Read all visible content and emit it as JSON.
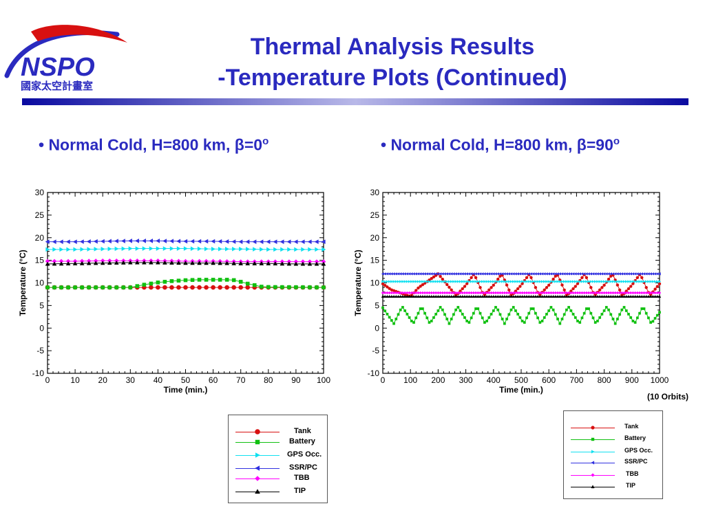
{
  "header": {
    "title_line1": "Thermal Analysis Results",
    "title_line2": "-Temperature Plots (Continued)",
    "logo_text": "NSPO",
    "logo_subtext": "國家太空計畫室"
  },
  "bullets": {
    "left": {
      "prefix": "• Normal Cold, H=800 km, ",
      "beta": "β",
      "suffix": "=0",
      "degree": "o"
    },
    "right": {
      "prefix": "• Normal Cold, H=800 km, ",
      "beta": "β",
      "suffix": "=90",
      "degree": "o"
    }
  },
  "note": "(10 Orbits)",
  "colors": {
    "title": "#2a2abf",
    "Tank": "#d81010",
    "Battery": "#10c010",
    "GPS Occ.": "#10e0f0",
    "SSR/PC": "#3030e0",
    "TBB": "#ff00ff",
    "TIP": "#000000"
  },
  "chart_data": [
    {
      "type": "line",
      "xlabel": "Time (min.)",
      "ylabel": "Temperature (°C)",
      "xlim": [
        0,
        100
      ],
      "ylim": [
        -10,
        30
      ],
      "xticks": [
        0,
        10,
        20,
        30,
        40,
        50,
        60,
        70,
        80,
        90,
        100
      ],
      "yticks": [
        -10,
        -5,
        0,
        5,
        10,
        15,
        20,
        25,
        30
      ],
      "legend_position": "below-right",
      "series": [
        {
          "name": "Tank",
          "marker": "circle",
          "x": [
            0,
            25,
            50,
            75,
            100
          ],
          "y": [
            9.0,
            9.0,
            9.0,
            9.0,
            9.0
          ]
        },
        {
          "name": "Battery",
          "marker": "square",
          "x": [
            0,
            30,
            35,
            40,
            45,
            50,
            55,
            60,
            65,
            68,
            72,
            78,
            100
          ],
          "y": [
            9.0,
            9.0,
            9.6,
            10.1,
            10.4,
            10.6,
            10.7,
            10.7,
            10.7,
            10.6,
            9.9,
            9.1,
            9.0
          ]
        },
        {
          "name": "GPS Occ.",
          "marker": "triangle-right",
          "x": [
            0,
            10,
            20,
            30,
            40,
            50,
            60,
            70,
            80,
            90,
            100
          ],
          "y": [
            17.4,
            17.4,
            17.5,
            17.6,
            17.6,
            17.6,
            17.5,
            17.5,
            17.4,
            17.4,
            17.4
          ]
        },
        {
          "name": "SSR/PC",
          "marker": "triangle-left",
          "x": [
            0,
            10,
            20,
            30,
            40,
            50,
            60,
            70,
            80,
            90,
            100
          ],
          "y": [
            19.1,
            19.1,
            19.2,
            19.3,
            19.3,
            19.2,
            19.2,
            19.1,
            19.1,
            19.1,
            19.1
          ]
        },
        {
          "name": "TBB",
          "marker": "diamond",
          "x": [
            0,
            10,
            20,
            30,
            40,
            50,
            60,
            70,
            80,
            90,
            100
          ],
          "y": [
            14.8,
            14.8,
            14.9,
            14.9,
            14.9,
            14.8,
            14.8,
            14.7,
            14.7,
            14.7,
            14.7
          ]
        },
        {
          "name": "TIP",
          "marker": "triangle-up",
          "x": [
            0,
            10,
            20,
            30,
            40,
            50,
            60,
            70,
            80,
            90,
            100
          ],
          "y": [
            14.2,
            14.3,
            14.4,
            14.5,
            14.5,
            14.4,
            14.4,
            14.3,
            14.3,
            14.2,
            14.2
          ]
        }
      ]
    },
    {
      "type": "line",
      "xlabel": "Time (min.)",
      "ylabel": "Temperature (°C)",
      "xlim": [
        0,
        1000
      ],
      "ylim": [
        -10,
        30
      ],
      "xticks": [
        0,
        100,
        200,
        300,
        400,
        500,
        600,
        700,
        800,
        900,
        1000
      ],
      "yticks": [
        -10,
        -5,
        0,
        5,
        10,
        15,
        20,
        25,
        30
      ],
      "legend_position": "below-right",
      "series": [
        {
          "name": "Tank",
          "marker": "circle",
          "x": [
            0,
            30,
            100,
            130,
            200,
            265,
            300,
            330,
            365,
            400,
            430,
            465,
            500,
            530,
            565,
            600,
            630,
            665,
            700,
            730,
            765,
            800,
            830,
            865,
            900,
            930,
            965,
            1000
          ],
          "y": [
            9.8,
            8.5,
            7.0,
            9.0,
            12.0,
            7.2,
            9.5,
            12.0,
            7.2,
            9.5,
            12.0,
            7.2,
            9.5,
            12.0,
            7.2,
            9.5,
            12.0,
            7.2,
            9.5,
            12.0,
            7.2,
            9.5,
            12.0,
            7.2,
            9.5,
            12.0,
            7.2,
            9.8
          ]
        },
        {
          "name": "Battery",
          "marker": "square",
          "x": [
            0,
            40,
            70,
            110,
            140,
            170,
            210,
            240,
            270,
            310,
            340,
            370,
            410,
            440,
            470,
            510,
            540,
            570,
            610,
            640,
            670,
            710,
            740,
            770,
            810,
            840,
            870,
            910,
            940,
            970,
            1000
          ],
          "y": [
            4.5,
            1.0,
            4.8,
            1.0,
            4.8,
            1.0,
            4.8,
            1.0,
            4.8,
            1.0,
            4.8,
            1.0,
            4.8,
            1.0,
            4.8,
            1.0,
            4.8,
            1.0,
            4.8,
            1.0,
            4.8,
            1.0,
            4.8,
            1.0,
            4.8,
            1.0,
            4.8,
            1.0,
            4.8,
            1.0,
            3.5
          ]
        },
        {
          "name": "GPS Occ.",
          "marker": "triangle-right",
          "x": [
            0,
            1000
          ],
          "y": [
            10.3,
            10.3
          ]
        },
        {
          "name": "SSR/PC",
          "marker": "triangle-left",
          "x": [
            0,
            1000
          ],
          "y": [
            12.0,
            12.0
          ]
        },
        {
          "name": "TBB",
          "marker": "diamond",
          "x": [
            0,
            1000
          ],
          "y": [
            7.8,
            7.8
          ]
        },
        {
          "name": "TIP",
          "marker": "triangle-up",
          "x": [
            0,
            1000
          ],
          "y": [
            7.0,
            7.0
          ]
        }
      ]
    }
  ]
}
